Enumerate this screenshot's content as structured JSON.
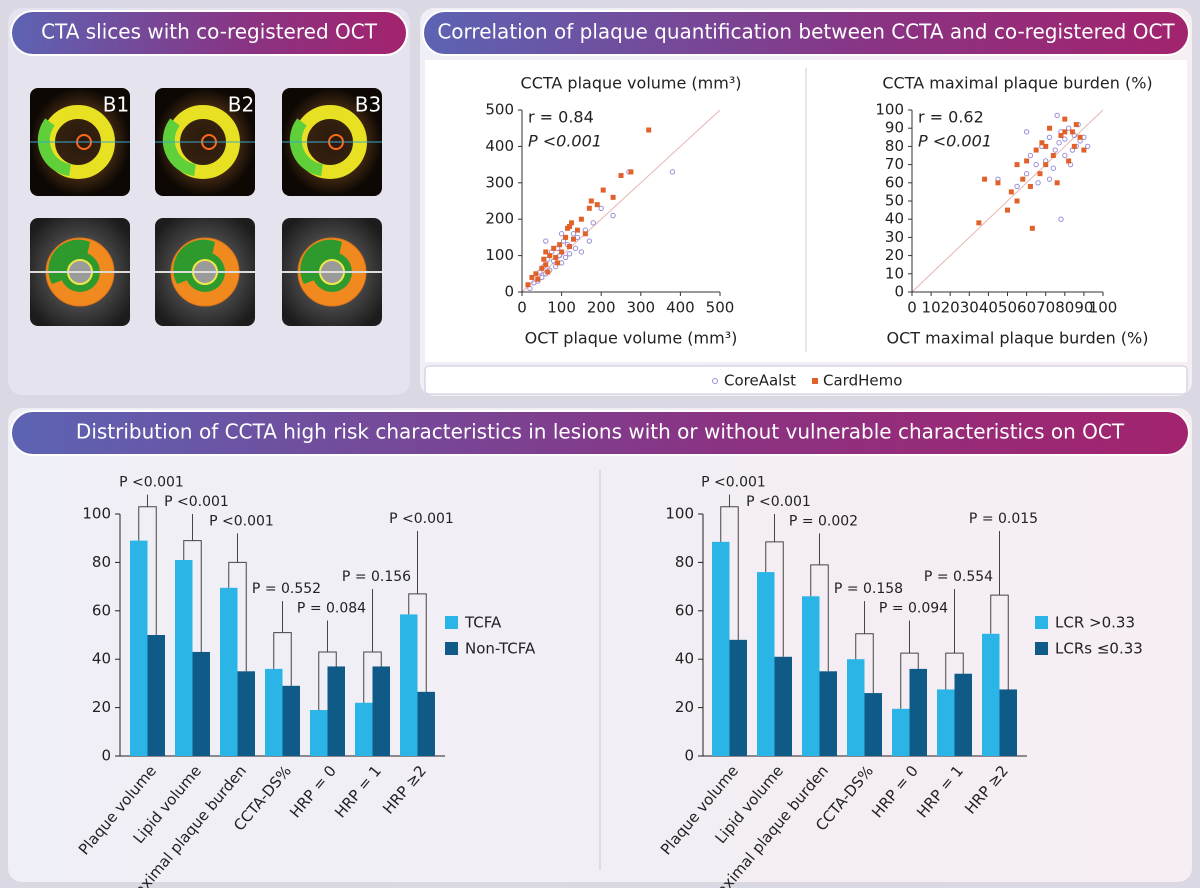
{
  "panels": {
    "cta": {
      "title": "CTA slices with co-registered OCT",
      "images": [
        "B1",
        "B2",
        "B3"
      ]
    },
    "correlation": {
      "title": "Correlation of plaque quantification between CCTA and co-registered OCT"
    },
    "distribution": {
      "title": "Distribution of CCTA high risk characteristics in lesions with or without vulnerable characteristics on OCT"
    }
  },
  "chart_data": [
    {
      "type": "scatter",
      "title": "CCTA plaque volume (mm³)",
      "xlabel": "OCT plaque volume (mm³)",
      "annotations": [
        "r = 0.84",
        "P <0.001"
      ],
      "xlim": [
        0,
        500
      ],
      "ylim": [
        0,
        500
      ],
      "xticks": [
        0,
        100,
        200,
        300,
        400,
        500
      ],
      "yticks": [
        0,
        100,
        200,
        300,
        400,
        500
      ],
      "series": [
        {
          "name": "CoreAalst",
          "color": "#9a8fd8",
          "x": [
            20,
            30,
            40,
            45,
            50,
            55,
            60,
            65,
            70,
            75,
            80,
            85,
            90,
            95,
            100,
            105,
            110,
            115,
            120,
            130,
            135,
            140,
            150,
            160,
            170,
            180,
            200,
            230,
            270,
            380,
            60,
            100
          ],
          "y": [
            10,
            25,
            30,
            55,
            40,
            70,
            50,
            90,
            60,
            110,
            85,
            70,
            120,
            100,
            80,
            140,
            95,
            130,
            105,
            160,
            120,
            150,
            110,
            170,
            140,
            190,
            230,
            210,
            330,
            330,
            140,
            160
          ]
        },
        {
          "name": "CardHemo",
          "color": "#e0622a",
          "x": [
            15,
            25,
            35,
            40,
            50,
            55,
            60,
            65,
            70,
            80,
            85,
            90,
            95,
            100,
            110,
            115,
            120,
            125,
            130,
            140,
            150,
            160,
            170,
            175,
            190,
            205,
            230,
            250,
            275,
            320,
            60,
            120
          ],
          "y": [
            20,
            40,
            50,
            35,
            65,
            90,
            75,
            55,
            100,
            120,
            95,
            80,
            130,
            110,
            150,
            175,
            125,
            190,
            145,
            170,
            200,
            160,
            230,
            250,
            240,
            280,
            260,
            320,
            330,
            445,
            110,
            180
          ]
        }
      ]
    },
    {
      "type": "scatter",
      "title": "CCTA maximal plaque burden (%)",
      "xlabel": "OCT maximal plaque burden (%)",
      "annotations": [
        "r = 0.62",
        "P <0.001"
      ],
      "xlim": [
        0,
        100
      ],
      "ylim": [
        0,
        100
      ],
      "xticks": [
        0,
        10,
        20,
        30,
        40,
        50,
        60,
        70,
        80,
        90,
        100
      ],
      "yticks": [
        0,
        10,
        20,
        30,
        40,
        50,
        60,
        70,
        80,
        90,
        100
      ],
      "series": [
        {
          "color": "#9a8fd8",
          "x": [
            45,
            55,
            60,
            62,
            65,
            68,
            70,
            72,
            74,
            75,
            77,
            78,
            80,
            80,
            82,
            83,
            85,
            86,
            87,
            88,
            90,
            72,
            60,
            78,
            84,
            66,
            92,
            76
          ],
          "y": [
            62,
            58,
            65,
            75,
            70,
            80,
            72,
            85,
            68,
            78,
            82,
            88,
            75,
            84,
            90,
            70,
            86,
            80,
            92,
            83,
            85,
            62,
            88,
            40,
            78,
            60,
            80,
            97
          ]
        },
        {
          "color": "#e0622a",
          "x": [
            38,
            35,
            45,
            50,
            52,
            55,
            58,
            60,
            62,
            63,
            65,
            67,
            68,
            70,
            72,
            74,
            76,
            78,
            80,
            82,
            84,
            85,
            86,
            88,
            90,
            55,
            70,
            80
          ],
          "y": [
            62,
            38,
            60,
            45,
            55,
            50,
            62,
            72,
            58,
            35,
            78,
            65,
            82,
            70,
            90,
            75,
            60,
            86,
            95,
            72,
            88,
            80,
            92,
            85,
            78,
            70,
            80,
            88
          ]
        }
      ]
    },
    {
      "type": "bar",
      "categories": [
        "Plaque volume",
        "Lipid volume",
        "Maximal plaque burden",
        "CCTA-DS%",
        "HRP = 0",
        "HRP = 1",
        "HRP ≥2"
      ],
      "ylim": [
        0,
        100
      ],
      "yticks": [
        0,
        20,
        40,
        60,
        80,
        100
      ],
      "series": [
        {
          "name": "TCFA",
          "color": "#2bb5e6",
          "values": [
            89,
            81,
            69.5,
            36,
            19,
            22,
            58.5
          ]
        },
        {
          "name": "Non-TCFA",
          "color": "#0f5a86",
          "values": [
            50,
            43,
            35,
            29,
            37,
            37,
            26.5
          ]
        }
      ],
      "brackets": [
        {
          "value": 103,
          "top": 108,
          "label": "P <0.001"
        },
        {
          "value": 89,
          "top": 100,
          "label": "P <0.001"
        },
        {
          "value": 80,
          "top": 92,
          "label": "P <0.001"
        },
        {
          "value": 51,
          "top": 64,
          "label": "P = 0.552"
        },
        {
          "value": 43,
          "top": 56,
          "label": "P = 0.084"
        },
        {
          "value": 43,
          "top": 69,
          "label": "P = 0.156"
        },
        {
          "value": 67,
          "top": 93,
          "label": "P <0.001"
        }
      ]
    },
    {
      "type": "bar",
      "categories": [
        "Plaque volume",
        "Lipid volume",
        "Maximal plaque burden",
        "CCTA-DS%",
        "HRP = 0",
        "HRP = 1",
        "HRP ≥2"
      ],
      "ylim": [
        0,
        100
      ],
      "yticks": [
        0,
        20,
        40,
        60,
        80,
        100
      ],
      "series": [
        {
          "name": "LCR >0.33",
          "color": "#2bb5e6",
          "values": [
            88.5,
            76,
            66,
            40,
            19.5,
            27.5,
            50.5
          ]
        },
        {
          "name": "LCRs ≤0.33",
          "color": "#0f5a86",
          "values": [
            48,
            41,
            35,
            26,
            36,
            34,
            27.5
          ]
        }
      ],
      "brackets": [
        {
          "value": 103,
          "top": 108,
          "label": "P <0.001"
        },
        {
          "value": 88.5,
          "top": 100,
          "label": "P <0.001"
        },
        {
          "value": 79,
          "top": 92,
          "label": "P = 0.002"
        },
        {
          "value": 50.5,
          "top": 64,
          "label": "P = 0.158"
        },
        {
          "value": 42.5,
          "top": 56,
          "label": "P = 0.094"
        },
        {
          "value": 42.5,
          "top": 69,
          "label": "P = 0.554"
        },
        {
          "value": 66.5,
          "top": 93,
          "label": "P = 0.015"
        }
      ]
    }
  ]
}
